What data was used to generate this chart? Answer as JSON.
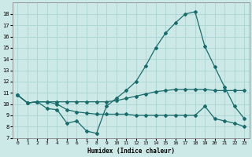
{
  "xlabel": "Humidex (Indice chaleur)",
  "ylabel": "",
  "bg_color": "#cce9e7",
  "grid_color": "#aad4d2",
  "line_color": "#1a6b6b",
  "xlim": [
    -0.5,
    23.5
  ],
  "ylim": [
    7,
    19
  ],
  "xticks": [
    0,
    1,
    2,
    3,
    4,
    5,
    6,
    7,
    8,
    9,
    10,
    11,
    12,
    13,
    14,
    15,
    16,
    17,
    18,
    19,
    20,
    21,
    22,
    23
  ],
  "yticks": [
    7,
    8,
    9,
    10,
    11,
    12,
    13,
    14,
    15,
    16,
    17,
    18
  ],
  "line1_x": [
    0,
    1,
    2,
    3,
    4,
    5,
    6,
    7,
    8,
    9,
    10,
    11,
    12,
    13,
    14,
    15,
    16,
    17,
    18,
    19,
    20,
    21,
    22,
    23
  ],
  "line1_y": [
    10.8,
    10.1,
    10.2,
    10.2,
    10.2,
    10.2,
    10.2,
    10.2,
    10.2,
    10.2,
    10.3,
    10.5,
    10.7,
    10.9,
    11.1,
    11.2,
    11.3,
    11.3,
    11.3,
    11.3,
    11.2,
    11.2,
    11.2,
    11.2
  ],
  "line2_x": [
    0,
    1,
    2,
    3,
    4,
    5,
    6,
    7,
    8,
    9,
    10,
    11,
    12,
    13,
    14,
    15,
    16,
    17,
    18,
    19,
    20,
    21,
    22,
    23
  ],
  "line2_y": [
    10.8,
    10.1,
    10.2,
    9.6,
    9.5,
    8.3,
    8.5,
    7.6,
    7.4,
    9.8,
    10.5,
    11.2,
    12.0,
    13.4,
    15.0,
    16.3,
    17.2,
    18.0,
    18.2,
    15.1,
    13.3,
    11.5,
    9.8,
    8.7
  ],
  "line3_x": [
    0,
    1,
    2,
    3,
    4,
    5,
    6,
    7,
    8,
    9,
    10,
    11,
    12,
    13,
    14,
    15,
    16,
    17,
    18,
    19,
    20,
    21,
    22,
    23
  ],
  "line3_y": [
    10.8,
    10.1,
    10.2,
    10.2,
    10.0,
    9.5,
    9.3,
    9.2,
    9.1,
    9.1,
    9.1,
    9.1,
    9.0,
    9.0,
    9.0,
    9.0,
    9.0,
    9.0,
    9.0,
    9.8,
    8.7,
    8.5,
    8.3,
    8.0
  ]
}
